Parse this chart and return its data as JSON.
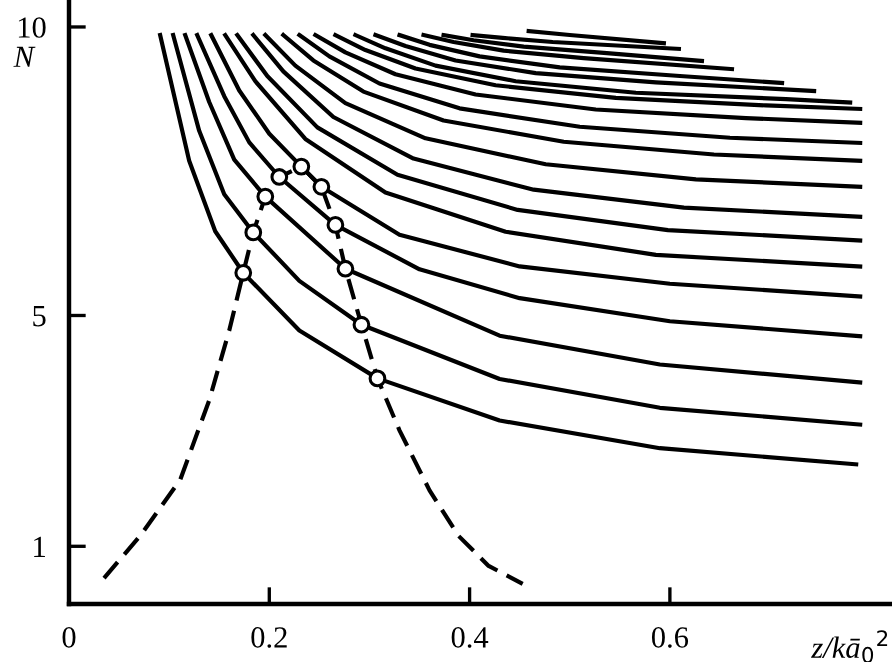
{
  "chart_data": {
    "type": "line",
    "xlabel": "z/kā$_{0}$$^{2}$",
    "ylabel": "N",
    "xlim": [
      0,
      0.82
    ],
    "ylim": [
      0,
      10.45
    ],
    "xticks": [
      0,
      0.2,
      0.4,
      0.6
    ],
    "yticks": [
      1,
      5,
      10
    ],
    "grid": false,
    "legend": false,
    "series": [
      {
        "color": "#000000",
        "line_style": "solid",
        "x": [
          0.091,
          0.12,
          0.146,
          0.174,
          0.23,
          0.308,
          0.43,
          0.59,
          0.786
        ],
        "values": [
          9.86,
          7.68,
          6.46,
          5.74,
          4.74,
          3.91,
          3.18,
          2.7,
          2.42
        ]
      },
      {
        "color": "#000000",
        "line_style": "solid",
        "x": [
          0.104,
          0.13,
          0.155,
          0.184,
          0.23,
          0.292,
          0.43,
          0.59,
          0.79
        ],
        "values": [
          9.86,
          8.2,
          7.1,
          6.44,
          5.6,
          4.84,
          3.9,
          3.4,
          3.11
        ]
      },
      {
        "color": "#000000",
        "line_style": "solid",
        "x": [
          0.116,
          0.14,
          0.165,
          0.196,
          0.276,
          0.43,
          0.59,
          0.79
        ],
        "values": [
          9.86,
          8.7,
          7.7,
          7.06,
          5.81,
          4.65,
          4.15,
          3.84
        ]
      },
      {
        "color": "#000000",
        "line_style": "solid",
        "x": [
          0.128,
          0.155,
          0.18,
          0.21,
          0.266,
          0.35,
          0.45,
          0.6,
          0.79
        ],
        "values": [
          9.86,
          8.8,
          8.0,
          7.4,
          6.57,
          5.8,
          5.3,
          4.9,
          4.64
        ]
      },
      {
        "color": "#000000",
        "line_style": "solid",
        "x": [
          0.142,
          0.17,
          0.2,
          0.232,
          0.252,
          0.33,
          0.45,
          0.6,
          0.79
        ],
        "values": [
          9.86,
          8.9,
          8.15,
          7.58,
          7.23,
          6.4,
          5.85,
          5.55,
          5.33
        ]
      },
      {
        "color": "#000000",
        "line_style": "solid",
        "x": [
          0.156,
          0.186,
          0.236,
          0.316,
          0.436,
          0.586,
          0.79
        ],
        "values": [
          9.86,
          9.06,
          8.06,
          7.13,
          6.45,
          6.05,
          5.85
        ]
      },
      {
        "color": "#000000",
        "line_style": "solid",
        "x": [
          0.168,
          0.198,
          0.248,
          0.328,
          0.448,
          0.598,
          0.79
        ],
        "values": [
          9.86,
          9.15,
          8.26,
          7.44,
          6.83,
          6.48,
          6.3
        ]
      },
      {
        "color": "#000000",
        "line_style": "solid",
        "x": [
          0.184,
          0.214,
          0.264,
          0.344,
          0.464,
          0.614,
          0.79
        ],
        "values": [
          9.86,
          9.23,
          8.44,
          7.72,
          7.18,
          6.87,
          6.71
        ]
      },
      {
        "color": "#000000",
        "line_style": "solid",
        "x": [
          0.196,
          0.226,
          0.276,
          0.356,
          0.476,
          0.626,
          0.79
        ],
        "values": [
          9.86,
          9.33,
          8.68,
          8.07,
          7.62,
          7.36,
          7.23
        ]
      },
      {
        "color": "#000000",
        "line_style": "solid",
        "x": [
          0.214,
          0.244,
          0.294,
          0.374,
          0.494,
          0.644,
          0.79
        ],
        "values": [
          9.86,
          9.42,
          8.88,
          8.38,
          8.01,
          7.79,
          7.68
        ]
      },
      {
        "color": "#000000",
        "line_style": "solid",
        "x": [
          0.23,
          0.26,
          0.31,
          0.39,
          0.51,
          0.66,
          0.79
        ],
        "values": [
          9.86,
          9.49,
          9.02,
          8.59,
          8.27,
          8.08,
          7.99
        ]
      },
      {
        "color": "#000000",
        "line_style": "solid",
        "x": [
          0.246,
          0.276,
          0.326,
          0.406,
          0.526,
          0.676,
          0.79
        ],
        "values": [
          9.86,
          9.56,
          9.18,
          8.83,
          8.57,
          8.42,
          8.34
        ]
      },
      {
        "color": "#000000",
        "line_style": "solid",
        "x": [
          0.266,
          0.296,
          0.346,
          0.426,
          0.546,
          0.696,
          0.79
        ],
        "values": [
          9.86,
          9.6,
          9.28,
          8.99,
          8.77,
          8.64,
          8.58
        ]
      },
      {
        "color": "#000000",
        "line_style": "solid",
        "x": [
          0.286,
          0.316,
          0.366,
          0.446,
          0.566,
          0.716,
          0.78
        ],
        "values": [
          9.86,
          9.63,
          9.33,
          9.06,
          8.86,
          8.75,
          8.69
        ]
      },
      {
        "color": "#000000",
        "line_style": "solid",
        "x": [
          0.306,
          0.336,
          0.386,
          0.466,
          0.586,
          0.744
        ],
        "values": [
          9.86,
          9.67,
          9.42,
          9.2,
          9.04,
          8.89
        ]
      },
      {
        "color": "#000000",
        "line_style": "solid",
        "x": [
          0.33,
          0.36,
          0.41,
          0.49,
          0.61,
          0.712
        ],
        "values": [
          9.86,
          9.69,
          9.49,
          9.3,
          9.15,
          9.03
        ]
      },
      {
        "color": "#000000",
        "line_style": "solid",
        "x": [
          0.354,
          0.384,
          0.434,
          0.514,
          0.662
        ],
        "values": [
          9.86,
          9.74,
          9.59,
          9.46,
          9.27
        ]
      },
      {
        "color": "#000000",
        "line_style": "solid",
        "x": [
          0.374,
          0.404,
          0.454,
          0.534,
          0.632
        ],
        "values": [
          9.86,
          9.77,
          9.66,
          9.55,
          9.41
        ]
      },
      {
        "color": "#000000",
        "line_style": "solid",
        "x": [
          0.403,
          0.433,
          0.483,
          0.609
        ],
        "values": [
          9.86,
          9.81,
          9.74,
          9.62
        ]
      },
      {
        "color": "#000000",
        "line_style": "solid",
        "x": [
          0.459,
          0.5,
          0.594
        ],
        "values": [
          9.93,
          9.86,
          9.72
        ]
      },
      {
        "color": "#000000",
        "line_style": "dashed",
        "x": [
          0.035,
          0.071,
          0.111,
          0.14,
          0.16,
          0.174,
          0.184,
          0.196,
          0.21,
          0.232,
          0.252,
          0.266,
          0.276,
          0.292,
          0.308,
          0.33,
          0.36,
          0.389,
          0.419,
          0.453
        ],
        "values": [
          0.45,
          1.18,
          2.15,
          3.53,
          4.74,
          5.74,
          6.44,
          7.06,
          7.4,
          7.58,
          7.23,
          6.57,
          5.81,
          4.84,
          3.91,
          3.01,
          1.97,
          1.18,
          0.66,
          0.35
        ]
      },
      {
        "type": "scatter",
        "color": "#000000",
        "marker": "circle",
        "x": [
          0.174,
          0.184,
          0.196,
          0.21,
          0.232,
          0.252,
          0.266,
          0.276,
          0.292,
          0.308
        ],
        "values": [
          5.74,
          6.44,
          7.06,
          7.4,
          7.58,
          7.23,
          6.57,
          5.81,
          4.84,
          3.91
        ]
      }
    ]
  }
}
